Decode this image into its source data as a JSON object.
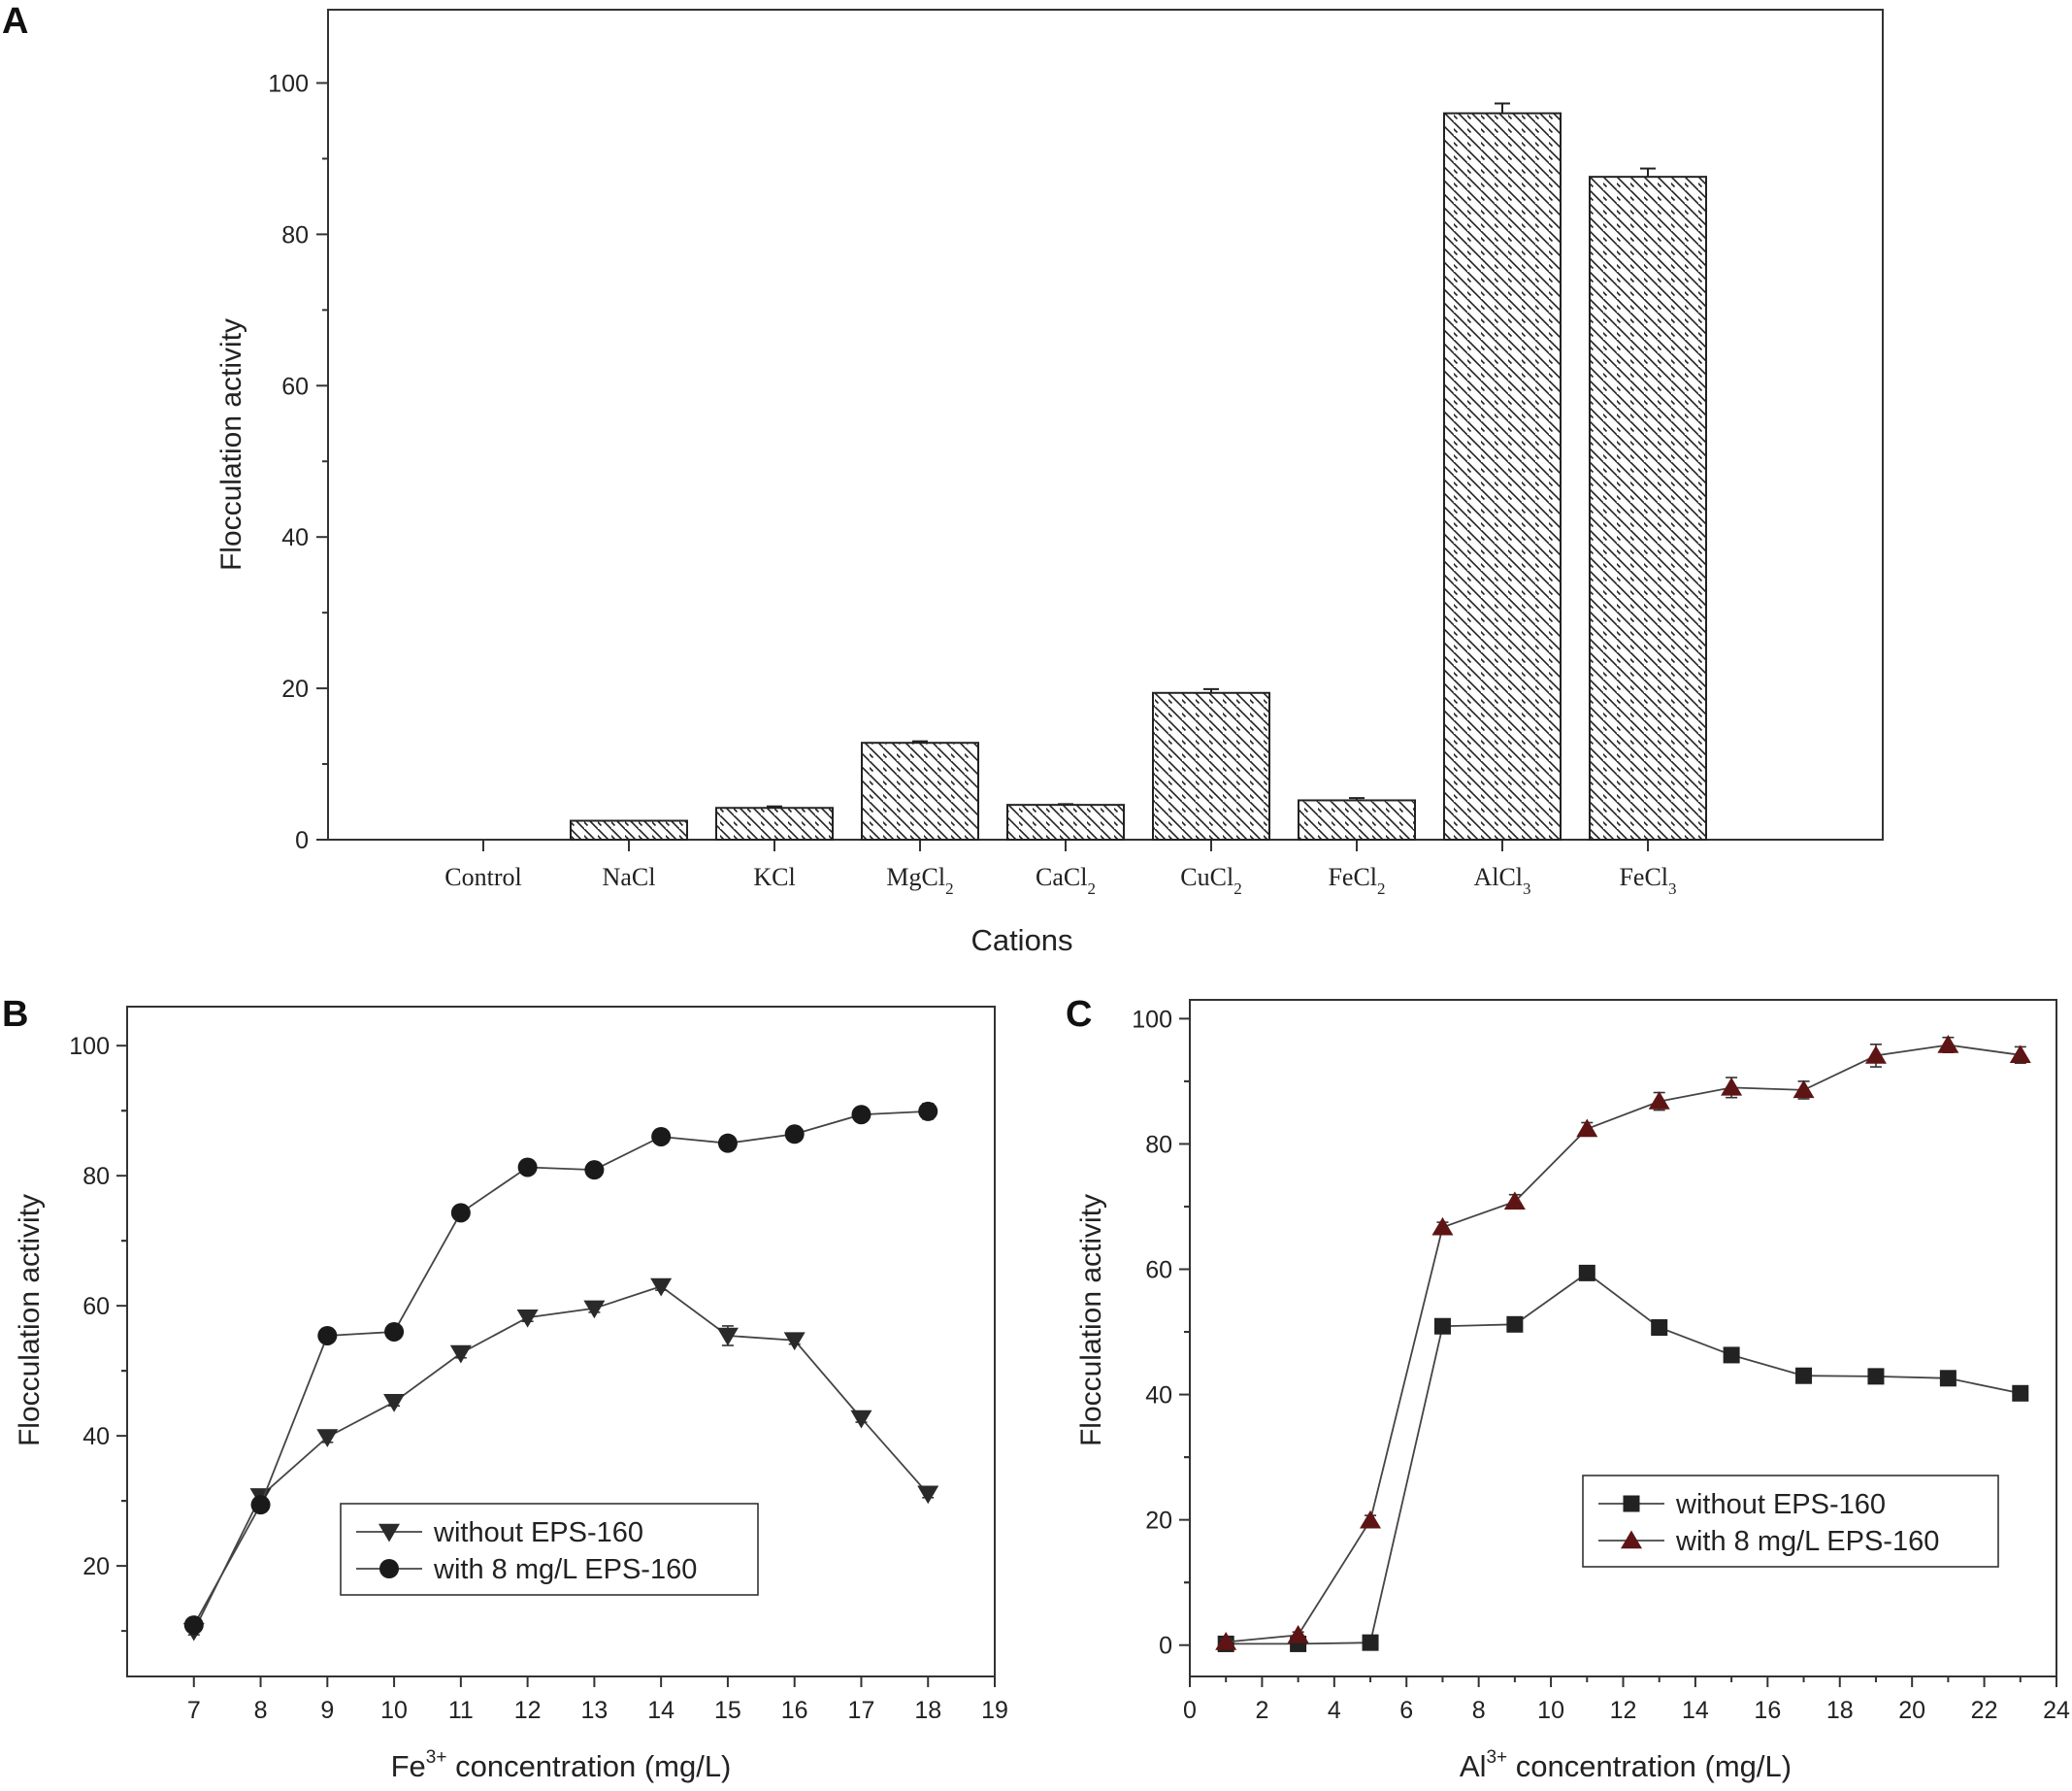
{
  "chart_data": [
    {
      "panel": "A",
      "type": "bar",
      "xlabel": "Cations",
      "ylabel": "Flocculation activity",
      "ylim": [
        0,
        110
      ],
      "yticks": [
        0,
        20,
        40,
        60,
        80,
        100
      ],
      "categories": [
        {
          "base": "Control",
          "sub": ""
        },
        {
          "base": "NaCl",
          "sub": ""
        },
        {
          "base": "KCl",
          "sub": ""
        },
        {
          "base": "MgCl",
          "sub": "2"
        },
        {
          "base": "CaCl",
          "sub": "2"
        },
        {
          "base": "CuCl",
          "sub": "2"
        },
        {
          "base": "FeCl",
          "sub": "2"
        },
        {
          "base": "AlCl",
          "sub": "3"
        },
        {
          "base": "FeCl",
          "sub": "3"
        }
      ],
      "values": [
        0,
        2.5,
        4.2,
        12.8,
        4.6,
        19.4,
        5.2,
        96.0,
        87.6
      ],
      "errors": [
        0,
        0,
        0.2,
        0.2,
        0.1,
        0.5,
        0.3,
        1.3,
        1.1
      ],
      "legend": "none"
    },
    {
      "panel": "B",
      "type": "line",
      "xlabel_base": "Fe",
      "xlabel_sup": "3+",
      "xlabel_rest": " concentration (mg/L)",
      "ylabel": "Flocculation activity",
      "xlim": [
        6,
        19
      ],
      "ylim": [
        3,
        106
      ],
      "xticks": [
        7,
        8,
        9,
        10,
        11,
        12,
        13,
        14,
        15,
        16,
        17,
        18,
        19
      ],
      "yticks": [
        20,
        40,
        60,
        80,
        100
      ],
      "legend": "lower-right",
      "series": [
        {
          "name": "without EPS-160",
          "marker": "triangle-down",
          "color": "#2a2a2a",
          "x": [
            7,
            8,
            9,
            10,
            11,
            12,
            13,
            14,
            15,
            16,
            17,
            18
          ],
          "y": [
            10.0,
            30.7,
            39.8,
            45.2,
            52.7,
            58.2,
            59.6,
            63.0,
            55.4,
            54.7,
            42.7,
            31.1
          ],
          "err": [
            0.6,
            0.6,
            0.8,
            0.6,
            0.7,
            0.6,
            0.6,
            0.6,
            1.5,
            0.6,
            0.6,
            0.6
          ]
        },
        {
          "name": "with 8 mg/L EPS-160",
          "marker": "circle",
          "color": "#1a1a1a",
          "x": [
            7,
            8,
            9,
            10,
            11,
            12,
            13,
            14,
            15,
            16,
            17,
            18
          ],
          "y": [
            10.9,
            29.4,
            55.4,
            56.0,
            74.3,
            81.3,
            80.9,
            86.0,
            85.0,
            86.4,
            89.4,
            89.9
          ],
          "err": [
            0.6,
            0.6,
            0.6,
            0.6,
            0.6,
            0.6,
            0.6,
            0.6,
            0.6,
            0.6,
            0.6,
            1.2
          ]
        }
      ]
    },
    {
      "panel": "C",
      "type": "line",
      "xlabel_base": "Al",
      "xlabel_sup": "3+",
      "xlabel_rest": " concentration (mg/L)",
      "ylabel": "Flocculation activity",
      "xlim": [
        0,
        24
      ],
      "ylim": [
        -5,
        103
      ],
      "xticks": [
        0,
        2,
        4,
        6,
        8,
        10,
        12,
        14,
        16,
        18,
        20,
        22,
        24
      ],
      "yticks": [
        0,
        20,
        40,
        60,
        80,
        100
      ],
      "legend": "lower-right",
      "series": [
        {
          "name": "without EPS-160",
          "marker": "square",
          "color": "#222222",
          "x": [
            1,
            3,
            5,
            7,
            9,
            11,
            13,
            15,
            17,
            19,
            21,
            23
          ],
          "y": [
            0.2,
            0.2,
            0.4,
            50.9,
            51.2,
            59.4,
            50.7,
            46.3,
            43.0,
            42.9,
            42.6,
            40.2
          ],
          "err": [
            0.5,
            0.5,
            0.5,
            0.5,
            0.6,
            0.6,
            0.6,
            0.6,
            0.5,
            0.5,
            0.5,
            0.5
          ]
        },
        {
          "name": "with 8 mg/L EPS-160",
          "marker": "triangle-up",
          "color": "#5e1414",
          "x": [
            1,
            3,
            5,
            7,
            9,
            11,
            13,
            15,
            17,
            19,
            21,
            23
          ],
          "y": [
            0.5,
            1.6,
            19.9,
            66.7,
            70.8,
            82.4,
            86.8,
            89.0,
            88.6,
            94.1,
            95.8,
            94.2
          ],
          "err": [
            0.5,
            0.5,
            0.8,
            0.8,
            1.1,
            1.0,
            1.4,
            1.6,
            1.4,
            1.8,
            1.2,
            1.3
          ]
        }
      ]
    }
  ]
}
